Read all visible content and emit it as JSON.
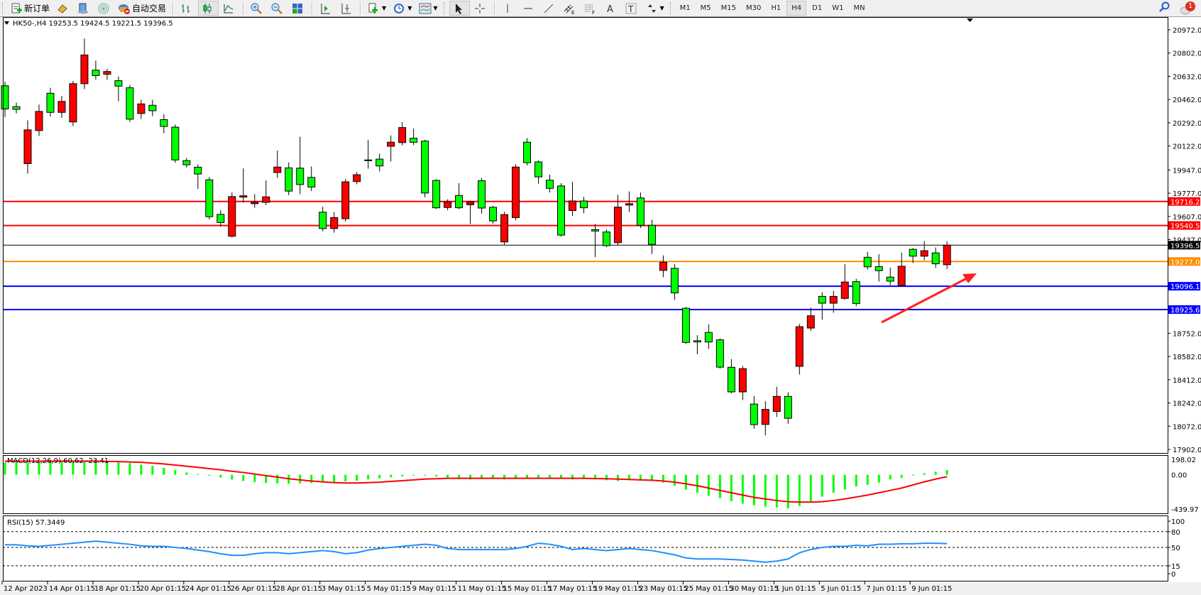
{
  "toolbar": {
    "new_order_label": "新订单",
    "auto_trade_label": "自动交易",
    "timeframes": [
      "M1",
      "M5",
      "M15",
      "M30",
      "H1",
      "H4",
      "D1",
      "W1",
      "MN"
    ],
    "selected_timeframe": "H4",
    "notification_count": "1",
    "icons": [
      "new-order-icon",
      "market-watch-icon",
      "navigator-icon",
      "signals-icon",
      "auto-trading-icon",
      "bar-chart-icon",
      "candlestick-icon",
      "line-chart-icon",
      "zoom-in-icon",
      "zoom-out-icon",
      "tile-windows-icon",
      "chart-shift-icon",
      "autoscroll-icon",
      "indicators-icon",
      "periods-icon",
      "templates-icon",
      "cursor-icon",
      "crosshair-icon",
      "vertical-line-icon",
      "horizontal-line-icon",
      "trendline-icon",
      "equidistant-channel-icon",
      "fibonacci-icon",
      "text-icon",
      "text-label-icon",
      "arrows-icon",
      "search-icon",
      "chat-icon"
    ]
  },
  "chart": {
    "header": "HK50-,H4  19253.5 19424.5 19221.5 19396.5",
    "symbol": "HK50-",
    "timeframe": "H4",
    "ohlc": {
      "open": 19253.5,
      "high": 19424.5,
      "low": 19221.5,
      "close": 19396.5
    }
  },
  "chart_data": [
    {
      "type": "candlestick",
      "title": "HK50-,H4",
      "ylim": [
        17902.0,
        20972.0
      ],
      "y_ticks": [
        "20972.0",
        "20802.0",
        "20632.0",
        "20462.0",
        "20292.0",
        "20122.0",
        "19947.0",
        "19777.0",
        "19607.0",
        "19437.0",
        "18752.0",
        "18582.0",
        "18412.0",
        "18242.0",
        "18072.0",
        "17902.0"
      ],
      "x_tick_labels": [
        "12 Apr 2023",
        "14 Apr 01:15",
        "18 Apr 01:15",
        "20 Apr 01:15",
        "24 Apr 01:15",
        "26 Apr 01:15",
        "28 Apr 01:15",
        "3 May 01:15",
        "5 May 01:15",
        "9 May 01:15",
        "11 May 01:15",
        "15 May 01:15",
        "17 May 01:15",
        "19 May 01:15",
        "23 May 01:15",
        "25 May 01:15",
        "30 May 01:15",
        "1 Jun 01:15",
        "5 Jun 01:15",
        "7 Jun 01:15",
        "9 Jun 01:15"
      ],
      "bull_color": "#ff0000",
      "bear_color": "#00ff00",
      "ohlc": [
        [
          20563,
          20593,
          20333,
          20393
        ],
        [
          20410,
          20440,
          20360,
          20390
        ],
        [
          19993,
          20310,
          19920,
          20240
        ],
        [
          20235,
          20425,
          20195,
          20375
        ],
        [
          20508,
          20548,
          20338,
          20368
        ],
        [
          20368,
          20488,
          20328,
          20448
        ],
        [
          20298,
          20598,
          20268,
          20578
        ],
        [
          20578,
          20908,
          20538,
          20788
        ],
        [
          20677,
          20747,
          20607,
          20637
        ],
        [
          20647,
          20687,
          20607,
          20667
        ],
        [
          20600,
          20630,
          20450,
          20560
        ],
        [
          20548,
          20568,
          20298,
          20318
        ],
        [
          20360,
          20460,
          20320,
          20430
        ],
        [
          20420,
          20460,
          20340,
          20380
        ],
        [
          20315,
          20355,
          20215,
          20265
        ],
        [
          20260,
          20280,
          20000,
          20020
        ],
        [
          20015,
          20035,
          19965,
          19985
        ],
        [
          19967,
          19987,
          19807,
          19917
        ],
        [
          19875,
          19895,
          19585,
          19605
        ],
        [
          19622,
          19652,
          19532,
          19562
        ],
        [
          19462,
          19782,
          19452,
          19752
        ],
        [
          19748,
          19958,
          19708,
          19758
        ],
        [
          19700,
          19770,
          19670,
          19710
        ],
        [
          19710,
          19870,
          19690,
          19750
        ],
        [
          19928,
          20088,
          19888,
          19968
        ],
        [
          19962,
          20002,
          19762,
          19792
        ],
        [
          19960,
          20190,
          19770,
          19840
        ],
        [
          19892,
          19972,
          19792,
          19822
        ],
        [
          19638,
          19678,
          19498,
          19518
        ],
        [
          19518,
          19638,
          19488,
          19598
        ],
        [
          19590,
          19880,
          19570,
          19860
        ],
        [
          19862,
          19932,
          19842,
          19912
        ],
        [
          20016,
          20166,
          19956,
          20020
        ],
        [
          20026,
          20066,
          19936,
          19976
        ],
        [
          20120,
          20200,
          20010,
          20150
        ],
        [
          20147,
          20297,
          20127,
          20257
        ],
        [
          20179,
          20249,
          20129,
          20149
        ],
        [
          20158,
          20168,
          19748,
          19778
        ],
        [
          19870,
          19880,
          19660,
          19670
        ],
        [
          19672,
          19732,
          19652,
          19712
        ],
        [
          19760,
          19850,
          19660,
          19670
        ],
        [
          19692,
          19722,
          19552,
          19712
        ],
        [
          19868,
          19888,
          19628,
          19668
        ],
        [
          19674,
          19684,
          19554,
          19574
        ],
        [
          19420,
          19640,
          19400,
          19620
        ],
        [
          19598,
          19988,
          19578,
          19968
        ],
        [
          20150,
          20180,
          19980,
          20000
        ],
        [
          20006,
          20016,
          19846,
          19896
        ],
        [
          19872,
          19912,
          19782,
          19812
        ],
        [
          19830,
          19850,
          19460,
          19470
        ],
        [
          19650,
          19860,
          19610,
          19720
        ],
        [
          19720,
          19750,
          19630,
          19670
        ],
        [
          19510,
          19550,
          19310,
          19500
        ],
        [
          19493,
          19513,
          19383,
          19393
        ],
        [
          19415,
          19765,
          19395,
          19675
        ],
        [
          19690,
          19790,
          19640,
          19700
        ],
        [
          19742,
          19782,
          19522,
          19542
        ],
        [
          19542,
          19582,
          19332,
          19402
        ],
        [
          19212,
          19322,
          19162,
          19272
        ],
        [
          19227,
          19257,
          18997,
          19047
        ],
        [
          18935,
          18945,
          18675,
          18685
        ],
        [
          18698,
          18738,
          18598,
          18688
        ],
        [
          18758,
          18818,
          18638,
          18688
        ],
        [
          18704,
          18714,
          18494,
          18504
        ],
        [
          18503,
          18563,
          18313,
          18323
        ],
        [
          18323,
          18513,
          18263,
          18493
        ],
        [
          18234,
          18294,
          18054,
          18084
        ],
        [
          18085,
          18255,
          18005,
          18195
        ],
        [
          18180,
          18360,
          18140,
          18290
        ],
        [
          18290,
          18320,
          18090,
          18130
        ],
        [
          18510,
          18820,
          18450,
          18800
        ],
        [
          18790,
          18940,
          18770,
          18880
        ],
        [
          19022,
          19052,
          18852,
          18972
        ],
        [
          18972,
          19062,
          18902,
          19022
        ],
        [
          19007,
          19257,
          18997,
          19127
        ],
        [
          19130,
          19150,
          18950,
          18970
        ],
        [
          19308,
          19348,
          19218,
          19238
        ],
        [
          19240,
          19330,
          19130,
          19210
        ],
        [
          19163,
          19233,
          19103,
          19133
        ],
        [
          19102,
          19342,
          19092,
          19242
        ],
        [
          19366,
          19376,
          19266,
          19316
        ],
        [
          19316,
          19426,
          19286,
          19356
        ],
        [
          19340,
          19380,
          19230,
          19260
        ],
        [
          19253.5,
          19424.5,
          19221.5,
          19396.5
        ]
      ],
      "horizontal_lines": [
        {
          "value": 19716.2,
          "label": "19716.2",
          "color": "#ff0000"
        },
        {
          "value": 19540.5,
          "label": "19540.5",
          "color": "#ff0000"
        },
        {
          "value": 19396.5,
          "label": "19396.5",
          "color": "#000000"
        },
        {
          "value": 19277.0,
          "label": "19277.0",
          "color": "#ff8c00"
        },
        {
          "value": 19096.1,
          "label": "19096.1",
          "color": "#0000ff"
        },
        {
          "value": 18925.6,
          "label": "18925.6",
          "color": "#0000ff"
        }
      ],
      "annotation_arrow_color": "#ff2020"
    },
    {
      "type": "bar",
      "title": "MACD(12,26,9) 60.62 -23.41",
      "params": "12,26,9",
      "main_value": 60.62,
      "signal_value": -23.41,
      "ylim": [
        -439.97,
        198.02
      ],
      "y_ticks": [
        "198.02",
        "0.00",
        "-439.97"
      ],
      "histogram_color": "#00ff00",
      "signal_color": "#ff0000",
      "histogram": [
        160,
        160,
        158,
        165,
        168,
        170,
        170,
        172,
        175,
        170,
        160,
        150,
        130,
        115,
        90,
        60,
        30,
        10,
        -10,
        -35,
        -60,
        -80,
        -95,
        -105,
        -110,
        -115,
        -110,
        -105,
        -100,
        -95,
        -85,
        -75,
        -60,
        -45,
        -30,
        -20,
        -10,
        -5,
        -20,
        -40,
        -55,
        -60,
        -55,
        -50,
        -60,
        -55,
        -40,
        -40,
        -45,
        -50,
        -60,
        -55,
        -60,
        -70,
        -80,
        -70,
        -65,
        -75,
        -100,
        -140,
        -190,
        -230,
        -270,
        -300,
        -340,
        -370,
        -390,
        -410,
        -420,
        -430,
        -400,
        -340,
        -280,
        -230,
        -190,
        -150,
        -130,
        -100,
        -60,
        -40,
        -10,
        20,
        40,
        60.62
      ],
      "signal": [
        175,
        175,
        175,
        175,
        175,
        175,
        175,
        175,
        175,
        172,
        170,
        165,
        160,
        150,
        140,
        125,
        110,
        95,
        80,
        65,
        45,
        30,
        10,
        -10,
        -30,
        -50,
        -65,
        -80,
        -90,
        -100,
        -105,
        -105,
        -100,
        -95,
        -85,
        -75,
        -65,
        -55,
        -50,
        -45,
        -45,
        -45,
        -45,
        -45,
        -45,
        -45,
        -45,
        -45,
        -45,
        -45,
        -45,
        -45,
        -48,
        -50,
        -55,
        -60,
        -65,
        -70,
        -80,
        -95,
        -115,
        -140,
        -170,
        -200,
        -230,
        -260,
        -290,
        -310,
        -330,
        -345,
        -350,
        -350,
        -345,
        -330,
        -310,
        -285,
        -260,
        -230,
        -200,
        -170,
        -130,
        -90,
        -55,
        -23.41
      ]
    },
    {
      "type": "line",
      "title": "RSI(15) 57.3449",
      "period": 15,
      "value": 57.3449,
      "ylim": [
        0,
        100
      ],
      "y_ticks": [
        "100",
        "80",
        "50",
        "15",
        "0"
      ],
      "levels": [
        80,
        50,
        15
      ],
      "line_color": "#1e90ff",
      "values": [
        55,
        55,
        53,
        52,
        54,
        56,
        58,
        60,
        62,
        60,
        58,
        56,
        53,
        52,
        52,
        50,
        48,
        45,
        42,
        38,
        35,
        35,
        38,
        40,
        40,
        38,
        40,
        42,
        44,
        42,
        38,
        40,
        45,
        48,
        50,
        52,
        54,
        56,
        54,
        48,
        46,
        46,
        46,
        46,
        46,
        48,
        52,
        58,
        56,
        52,
        46,
        48,
        46,
        44,
        46,
        48,
        46,
        44,
        40,
        36,
        30,
        28,
        28,
        28,
        27,
        26,
        24,
        22,
        24,
        28,
        40,
        46,
        50,
        52,
        52,
        54,
        53,
        56,
        56,
        57,
        57,
        58,
        58,
        57.3449
      ]
    }
  ]
}
